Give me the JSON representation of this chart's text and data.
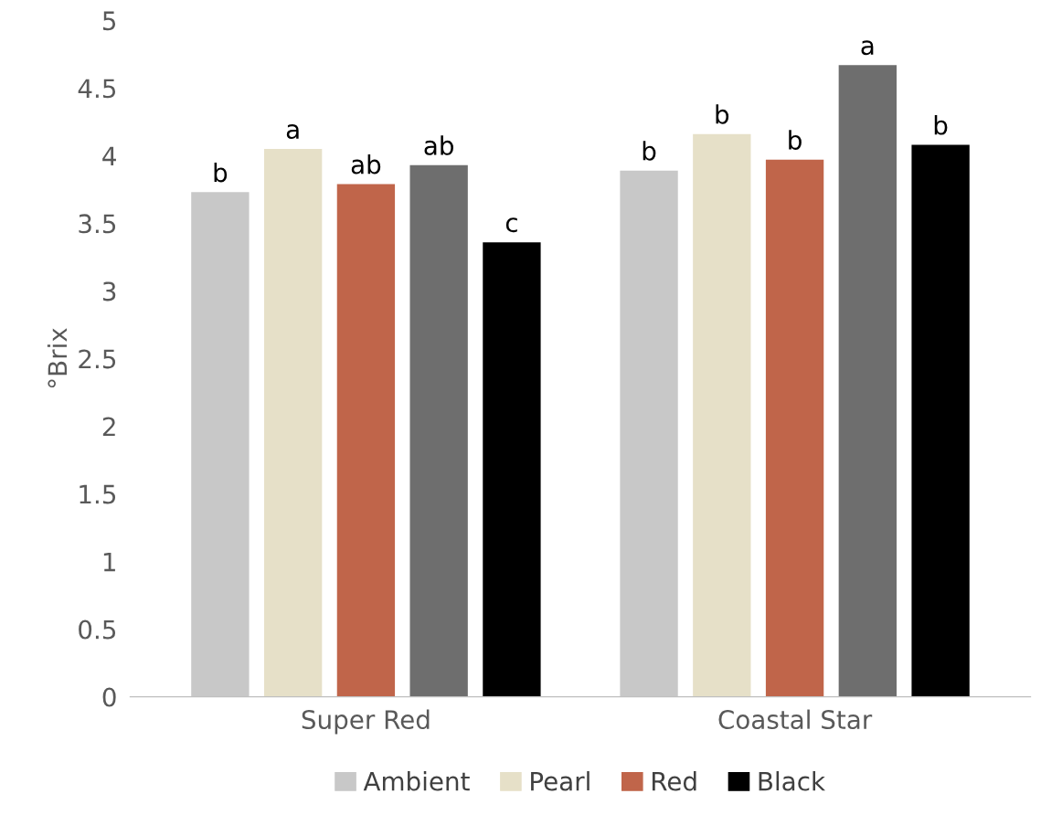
{
  "chart_data": {
    "type": "bar",
    "ylabel": "°Brix",
    "categories": [
      "Super Red",
      "Coastal Star"
    ],
    "series": [
      {
        "name": "Ambient",
        "color": "#c8c8c8",
        "values": [
          3.73,
          3.89
        ],
        "value_labels": [
          "b",
          "b"
        ]
      },
      {
        "name": "Pearl",
        "color": "#e6e0c8",
        "values": [
          4.05,
          4.16
        ],
        "value_labels": [
          "a",
          "b"
        ]
      },
      {
        "name": "Red",
        "color": "#c0654a",
        "values": [
          3.79,
          3.97
        ],
        "value_labels": [
          "ab",
          "b"
        ]
      },
      {
        "color": "#6e6e6e",
        "values": [
          3.93,
          4.67
        ],
        "value_labels": [
          "ab",
          "a"
        ]
      },
      {
        "name": "Black",
        "color": "#000000",
        "values": [
          3.36,
          4.08
        ],
        "value_labels": [
          "c",
          "b"
        ]
      }
    ],
    "ylim": [
      0,
      5
    ],
    "yticks": [
      0,
      0.5,
      1,
      1.5,
      2,
      2.5,
      3,
      3.5,
      4,
      4.5,
      5
    ],
    "grid": false,
    "legend": "bottom"
  }
}
